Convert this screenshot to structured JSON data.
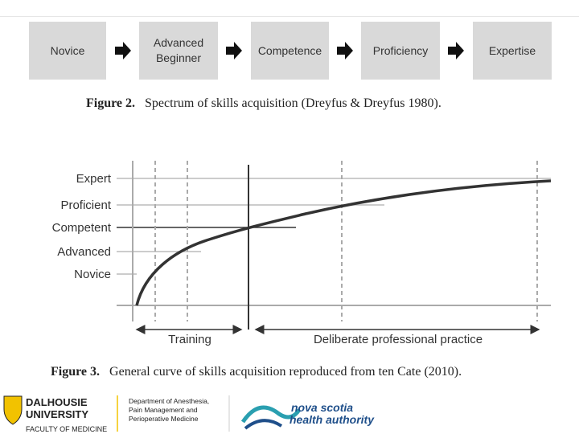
{
  "figure2": {
    "stages": [
      "Novice",
      "Advanced Beginner",
      "Competence",
      "Proficiency",
      "Expertise"
    ],
    "caption_label": "Figure 2.",
    "caption": "Spectrum of skills acquisition (Dreyfus & Dreyfus 1980)."
  },
  "figure3": {
    "levels": [
      "Expert",
      "Proficient",
      "Competent",
      "Advanced",
      "Novice"
    ],
    "phases": [
      "Training",
      "Deliberate professional practice"
    ],
    "caption_label": "Figure 3.",
    "caption": "General curve of skills acquisition reproduced from ten Cate (2010)."
  },
  "footer": {
    "university": [
      "DALHOUSIE",
      "UNIVERSITY"
    ],
    "faculty": "FACULTY OF MEDICINE",
    "department": [
      "Department of Anesthesia,",
      "Pain Management and",
      "Perioperative Medicine"
    ],
    "health": [
      "nova scotia",
      "health authority"
    ]
  }
}
